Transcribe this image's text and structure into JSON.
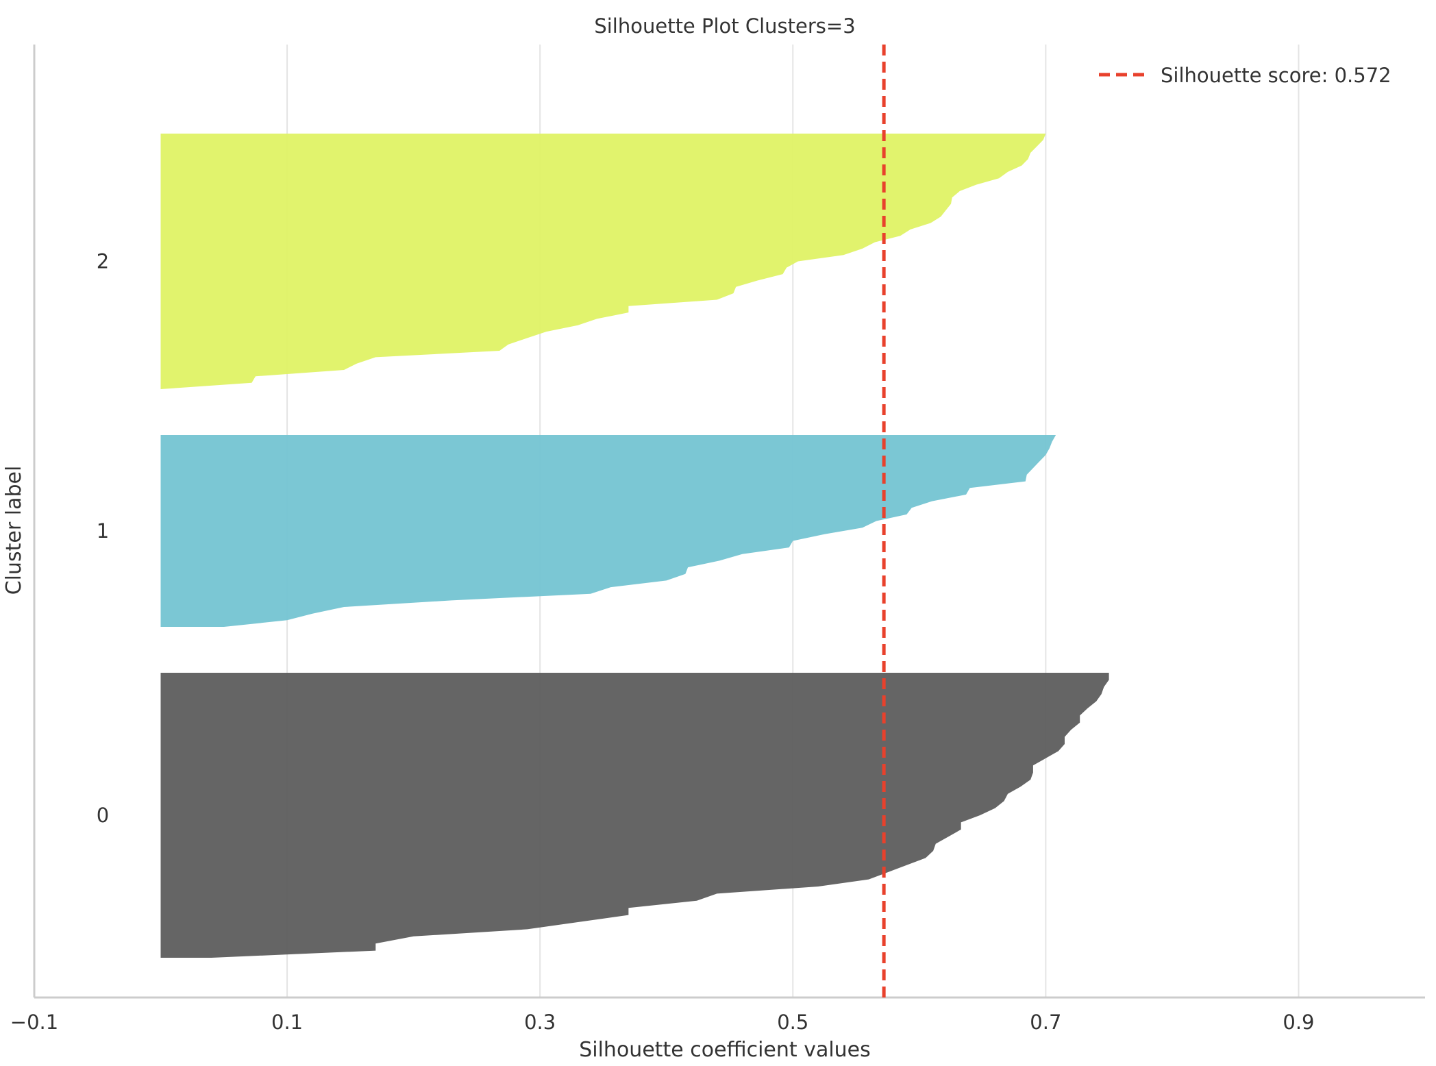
{
  "chart_data": {
    "type": "area",
    "title": "Silhouette Plot Clusters=3",
    "xlabel": "Silhouette coefficient values",
    "ylabel": "Cluster label",
    "xlim": [
      -0.1,
      1.0
    ],
    "xticks": [
      -0.1,
      0.1,
      0.3,
      0.5,
      0.7,
      0.9
    ],
    "xtick_labels": [
      "−0.1",
      "0.1",
      "0.3",
      "0.5",
      "0.7",
      "0.9"
    ],
    "grid": true,
    "legend_position": "top-right",
    "silhouette_score": 0.572,
    "score_line_label": "Silhouette score: 0.572",
    "score_line_color": "#e8412c",
    "series": [
      {
        "name": "0",
        "color": "#5f5f5f",
        "values": [
          0.75,
          0.75,
          0.746,
          0.744,
          0.74,
          0.733,
          0.727,
          0.727,
          0.72,
          0.715,
          0.715,
          0.71,
          0.7,
          0.69,
          0.69,
          0.688,
          0.68,
          0.67,
          0.667,
          0.66,
          0.648,
          0.633,
          0.633,
          0.623,
          0.613,
          0.611,
          0.605,
          0.59,
          0.575,
          0.56,
          0.52,
          0.44,
          0.424,
          0.37,
          0.37,
          0.33,
          0.29,
          0.2,
          0.17,
          0.17,
          0.04
        ]
      },
      {
        "name": "1",
        "color": "#76c5d2",
        "values": [
          0.708,
          0.705,
          0.703,
          0.7,
          0.695,
          0.69,
          0.685,
          0.684,
          0.64,
          0.637,
          0.61,
          0.594,
          0.59,
          0.566,
          0.555,
          0.525,
          0.5,
          0.497,
          0.46,
          0.442,
          0.417,
          0.415,
          0.4,
          0.356,
          0.34,
          0.23,
          0.145,
          0.12,
          0.1,
          0.05
        ]
      },
      {
        "name": "2",
        "color": "#e0f267",
        "values": [
          0.7,
          0.698,
          0.693,
          0.688,
          0.686,
          0.681,
          0.67,
          0.663,
          0.645,
          0.632,
          0.626,
          0.625,
          0.621,
          0.617,
          0.609,
          0.593,
          0.585,
          0.565,
          0.555,
          0.54,
          0.504,
          0.495,
          0.492,
          0.472,
          0.455,
          0.453,
          0.44,
          0.37,
          0.37,
          0.345,
          0.33,
          0.305,
          0.29,
          0.275,
          0.268,
          0.17,
          0.155,
          0.145,
          0.075,
          0.072,
          0.0
        ]
      }
    ]
  }
}
